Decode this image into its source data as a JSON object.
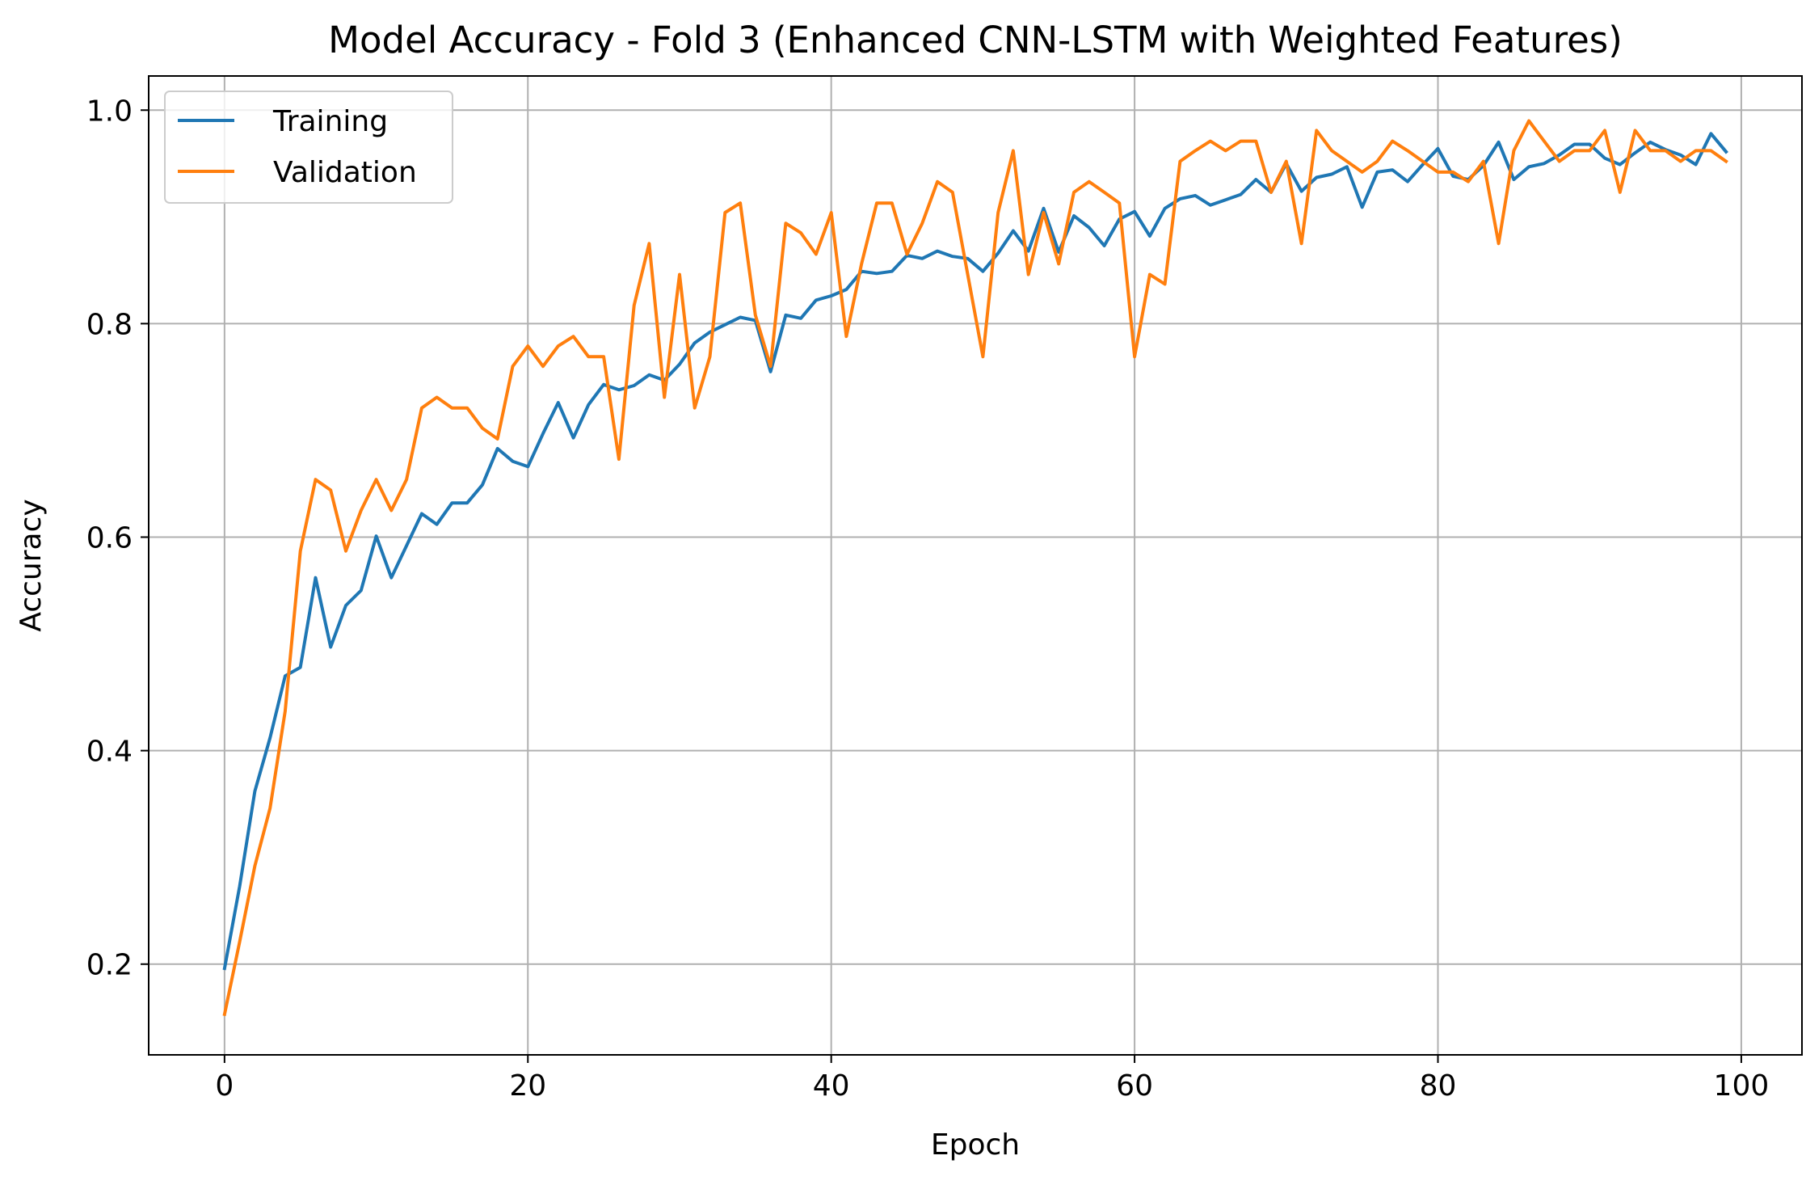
{
  "chart_data": {
    "type": "line",
    "title": "Model Accuracy - Fold 3 (Enhanced CNN-LSTM with Weighted Features)",
    "xlabel": "Epoch",
    "ylabel": "Accuracy",
    "xlim": [
      -5,
      104
    ],
    "ylim": [
      0.115,
      1.032
    ],
    "xticks": [
      0,
      20,
      40,
      60,
      80,
      100
    ],
    "yticks": [
      0.2,
      0.4,
      0.6,
      0.8,
      1.0
    ],
    "xtick_labels": [
      "0",
      "20",
      "40",
      "60",
      "80",
      "100"
    ],
    "ytick_labels": [
      "0.2",
      "0.4",
      "0.6",
      "0.8",
      "1.0"
    ],
    "grid": true,
    "legend_position": "top-left",
    "x": [
      0,
      1,
      2,
      3,
      4,
      5,
      6,
      7,
      8,
      9,
      10,
      11,
      12,
      13,
      14,
      15,
      16,
      17,
      18,
      19,
      20,
      21,
      22,
      23,
      24,
      25,
      26,
      27,
      28,
      29,
      30,
      31,
      32,
      33,
      34,
      35,
      36,
      37,
      38,
      39,
      40,
      41,
      42,
      43,
      44,
      45,
      46,
      47,
      48,
      49,
      50,
      51,
      52,
      53,
      54,
      55,
      56,
      57,
      58,
      59,
      60,
      61,
      62,
      63,
      64,
      65,
      66,
      67,
      68,
      69,
      70,
      71,
      72,
      73,
      74,
      75,
      76,
      77,
      78,
      79,
      80,
      81,
      82,
      83,
      84,
      85,
      86,
      87,
      88,
      89,
      90,
      91,
      92,
      93,
      94,
      95,
      96,
      97,
      98,
      99
    ],
    "series": [
      {
        "name": "Training",
        "color": "#1f77b4",
        "values": [
          0.196,
          0.273,
          0.362,
          0.412,
          0.47,
          0.478,
          0.562,
          0.497,
          0.536,
          0.55,
          0.601,
          0.562,
          0.592,
          0.622,
          0.612,
          0.632,
          0.632,
          0.649,
          0.683,
          0.671,
          0.666,
          0.697,
          0.726,
          0.693,
          0.724,
          0.743,
          0.738,
          0.742,
          0.752,
          0.747,
          0.762,
          0.782,
          0.792,
          0.799,
          0.806,
          0.803,
          0.755,
          0.808,
          0.805,
          0.822,
          0.826,
          0.832,
          0.849,
          0.847,
          0.849,
          0.864,
          0.861,
          0.868,
          0.863,
          0.861,
          0.849,
          0.866,
          0.887,
          0.868,
          0.908,
          0.867,
          0.901,
          0.89,
          0.873,
          0.898,
          0.905,
          0.882,
          0.908,
          0.917,
          0.92,
          0.911,
          0.916,
          0.921,
          0.935,
          0.923,
          0.95,
          0.924,
          0.937,
          0.94,
          0.947,
          0.909,
          0.942,
          0.944,
          0.933,
          0.949,
          0.964,
          0.938,
          0.935,
          0.948,
          0.97,
          0.935,
          0.947,
          0.95,
          0.958,
          0.968,
          0.968,
          0.955,
          0.949,
          0.96,
          0.97,
          0.963,
          0.958,
          0.949,
          0.978,
          0.961
        ]
      },
      {
        "name": "Validation",
        "color": "#ff7f0e",
        "values": [
          0.153,
          0.221,
          0.292,
          0.346,
          0.437,
          0.587,
          0.654,
          0.644,
          0.587,
          0.625,
          0.654,
          0.625,
          0.654,
          0.721,
          0.731,
          0.721,
          0.721,
          0.702,
          0.692,
          0.76,
          0.779,
          0.76,
          0.779,
          0.788,
          0.769,
          0.769,
          0.673,
          0.817,
          0.875,
          0.731,
          0.846,
          0.721,
          0.769,
          0.904,
          0.913,
          0.808,
          0.76,
          0.894,
          0.885,
          0.865,
          0.904,
          0.788,
          0.856,
          0.913,
          0.913,
          0.865,
          0.894,
          0.933,
          0.923,
          0.846,
          0.769,
          0.904,
          0.962,
          0.846,
          0.904,
          0.856,
          0.923,
          0.933,
          0.923,
          0.913,
          0.769,
          0.846,
          0.837,
          0.952,
          0.962,
          0.971,
          0.962,
          0.971,
          0.971,
          0.923,
          0.952,
          0.875,
          0.981,
          0.962,
          0.952,
          0.942,
          0.952,
          0.971,
          0.962,
          0.952,
          0.942,
          0.942,
          0.933,
          0.952,
          0.875,
          0.962,
          0.99,
          0.971,
          0.952,
          0.962,
          0.962,
          0.981,
          0.923,
          0.981,
          0.962,
          0.962,
          0.952,
          0.962,
          0.962,
          0.952
        ]
      }
    ]
  }
}
